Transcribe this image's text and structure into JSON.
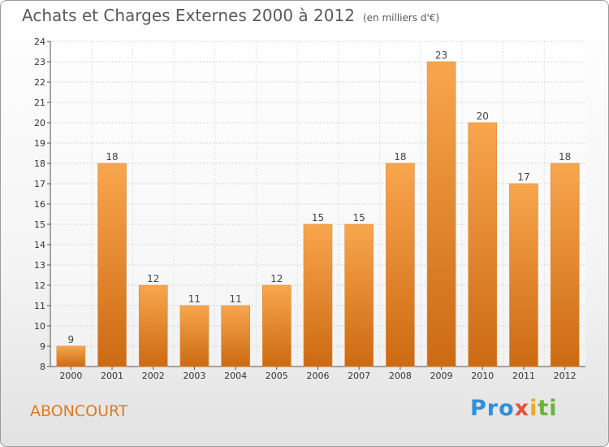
{
  "header": {
    "title": "Achats et Charges Externes 2000 à 2012",
    "subtitle": "(en milliers d'€)"
  },
  "footer": {
    "commune": "ABONCOURT",
    "logo": {
      "p1": "Pro",
      "p2": "x",
      "p3": "i",
      "p4": "ti"
    }
  },
  "colors": {
    "bar_light": "#f8a64e",
    "bar_dark": "#cc6a12",
    "title": "#5a5a5a",
    "commune": "#e07a1e"
  },
  "chart_data": {
    "type": "bar",
    "title": "Achats et Charges Externes 2000 à 2012",
    "subtitle": "(en milliers d'€)",
    "categories": [
      "2000",
      "2001",
      "2002",
      "2003",
      "2004",
      "2005",
      "2006",
      "2007",
      "2008",
      "2009",
      "2010",
      "2011",
      "2012"
    ],
    "values": [
      9,
      18,
      12,
      11,
      11,
      12,
      15,
      15,
      18,
      23,
      20,
      17,
      18
    ],
    "ylim": [
      8,
      24
    ],
    "yticks": [
      8,
      9,
      10,
      11,
      12,
      13,
      14,
      15,
      16,
      17,
      18,
      19,
      20,
      21,
      22,
      23,
      24
    ],
    "grid": true,
    "data_labels": true
  }
}
